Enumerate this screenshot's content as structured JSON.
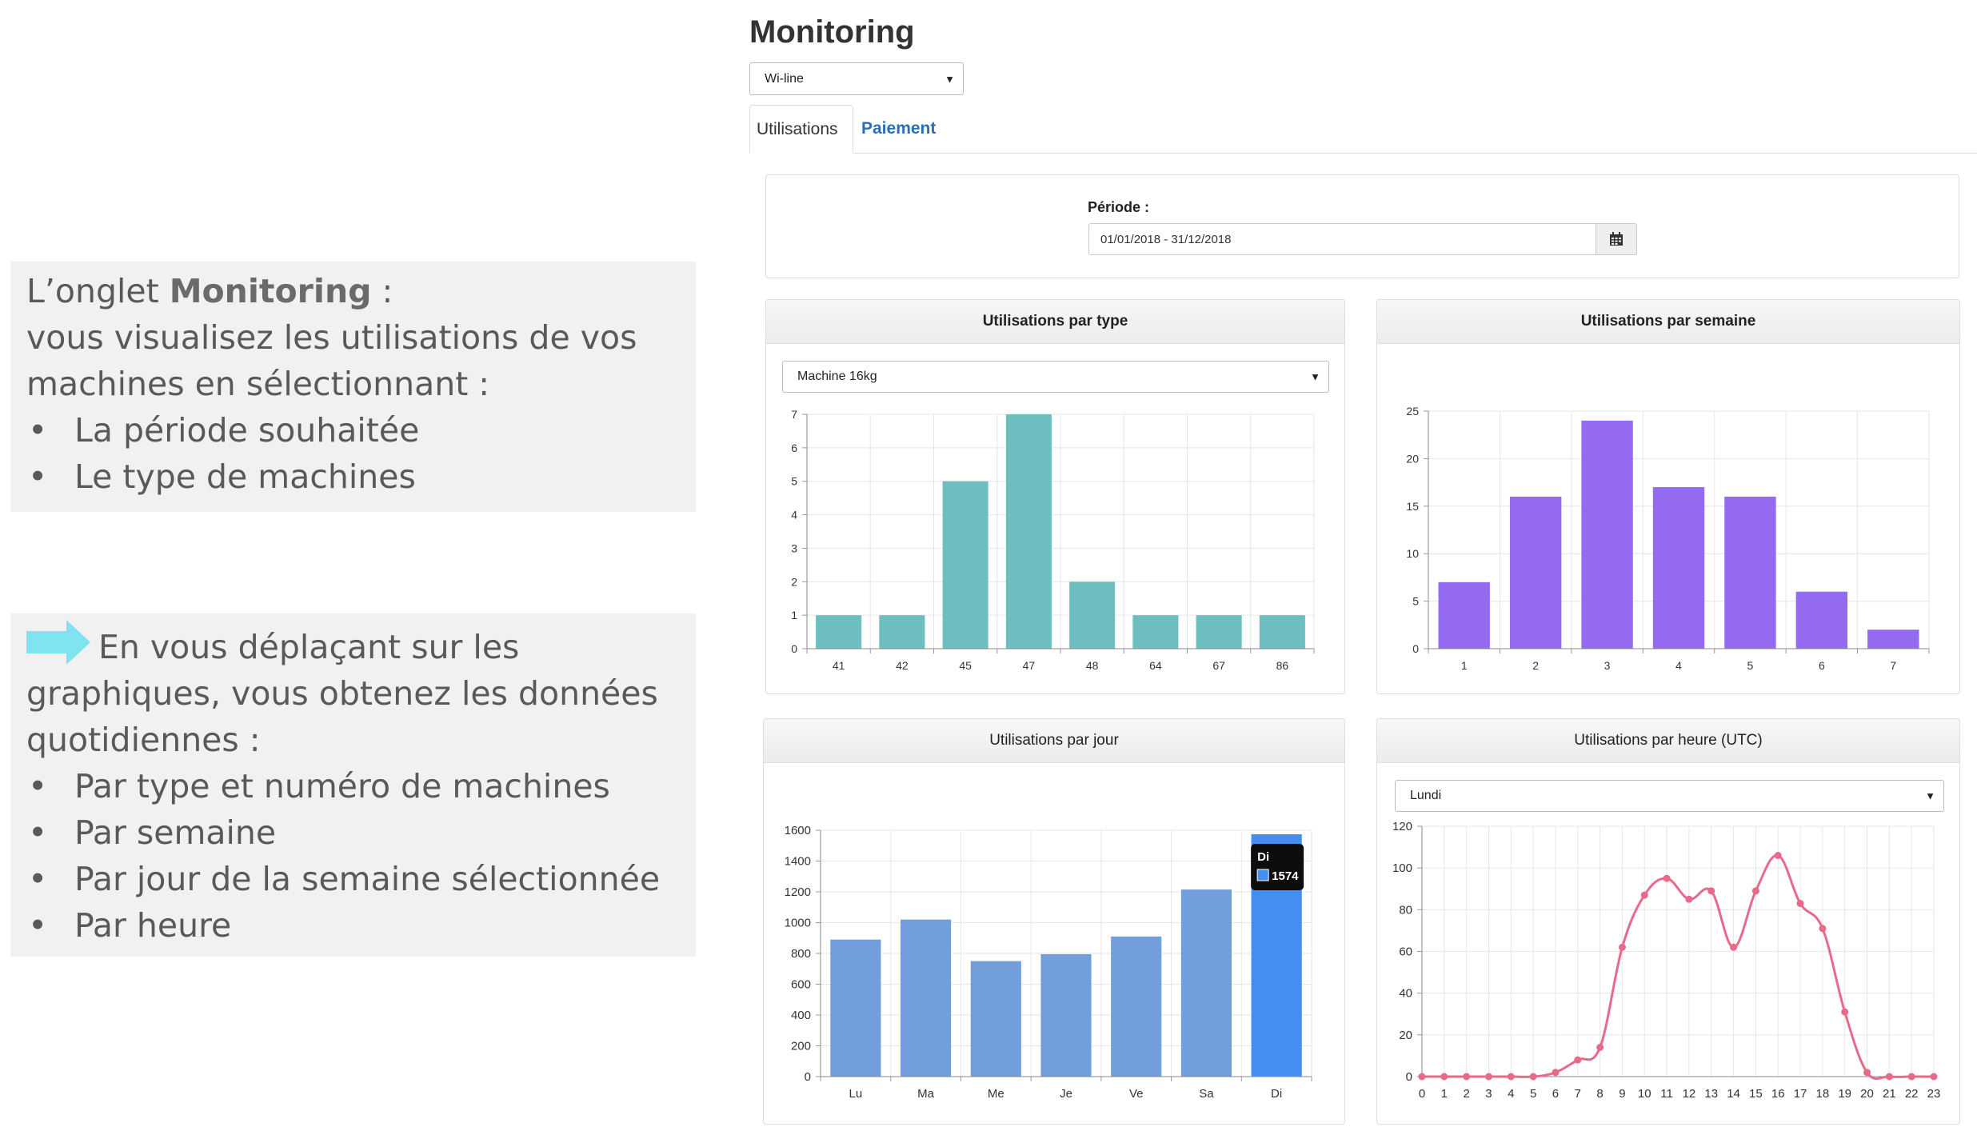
{
  "notes": {
    "note1": {
      "prefix": "L’onglet ",
      "bold": "Monitoring",
      "suffix": " :",
      "line2": "vous visualisez les utilisations de vos machines en sélectionnant :",
      "items": [
        "La période souhaitée",
        "Le type de machines"
      ]
    },
    "note2": {
      "intro": "En vous déplaçant sur les graphiques, vous obtenez les données quotidiennes :",
      "items": [
        "Par type et numéro de machines",
        "Par semaine",
        "Par jour de la semaine sélectionnée",
        "Par heure"
      ],
      "arrow_color": "#7fe4f0"
    }
  },
  "app": {
    "title": "Monitoring",
    "site_select": "Wi-line",
    "tabs": [
      {
        "label": "Utilisations",
        "active": true
      },
      {
        "label": "Paiement",
        "active": false
      }
    ],
    "periode": {
      "label": "Période :",
      "value": "01/01/2018 - 31/12/2018",
      "button_icon": "calendar-icon"
    }
  },
  "panels": {
    "type": {
      "title": "Utilisations par type",
      "select": "Machine 16kg"
    },
    "semaine": {
      "title": "Utilisations par semaine"
    },
    "jour": {
      "title": "Utilisations par jour",
      "tooltip": {
        "label": "Di",
        "value": "1574"
      }
    },
    "heure": {
      "title": "Utilisations par heure (UTC)",
      "select": "Lundi"
    }
  },
  "chart_data": [
    {
      "type": "bar",
      "title": "Utilisations par type",
      "categories": [
        "41",
        "42",
        "45",
        "47",
        "48",
        "64",
        "67",
        "86"
      ],
      "values": [
        1,
        1,
        5,
        7,
        2,
        1,
        1,
        1
      ],
      "ylim": [
        0,
        7
      ],
      "yticks": [
        0,
        1,
        2,
        3,
        4,
        5,
        6,
        7
      ],
      "color": "#6dbfbf",
      "grid": true
    },
    {
      "type": "bar",
      "title": "Utilisations par semaine",
      "categories": [
        "1",
        "2",
        "3",
        "4",
        "5",
        "6",
        "7"
      ],
      "values": [
        7,
        16,
        24,
        17,
        16,
        6,
        2
      ],
      "ylim": [
        0,
        25
      ],
      "yticks": [
        0,
        5,
        10,
        15,
        20,
        25
      ],
      "color": "#946af0",
      "grid": true
    },
    {
      "type": "bar",
      "title": "Utilisations par jour",
      "categories": [
        "Lu",
        "Ma",
        "Me",
        "Je",
        "Ve",
        "Sa",
        "Di"
      ],
      "values": [
        890,
        1020,
        750,
        795,
        910,
        1215,
        1574
      ],
      "ylim": [
        0,
        1600
      ],
      "yticks": [
        0,
        200,
        400,
        600,
        800,
        1000,
        1200,
        1400,
        1600
      ],
      "color": "#729fdc",
      "highlight_color": "#438ef0",
      "highlight_index": 6,
      "grid": true
    },
    {
      "type": "line",
      "title": "Utilisations par heure (UTC)",
      "x": [
        0,
        1,
        2,
        3,
        4,
        5,
        6,
        7,
        8,
        9,
        10,
        11,
        12,
        13,
        14,
        15,
        16,
        17,
        18,
        19,
        20,
        21,
        22,
        23
      ],
      "values": [
        0,
        0,
        0,
        0,
        0,
        0,
        2,
        8,
        14,
        62,
        87,
        95,
        85,
        89,
        62,
        89,
        106,
        83,
        71,
        31,
        2,
        0,
        0,
        0
      ],
      "ylim": [
        0,
        120
      ],
      "yticks": [
        0,
        20,
        40,
        60,
        80,
        100,
        120
      ],
      "color": "#e86a8a",
      "grid": true
    }
  ]
}
